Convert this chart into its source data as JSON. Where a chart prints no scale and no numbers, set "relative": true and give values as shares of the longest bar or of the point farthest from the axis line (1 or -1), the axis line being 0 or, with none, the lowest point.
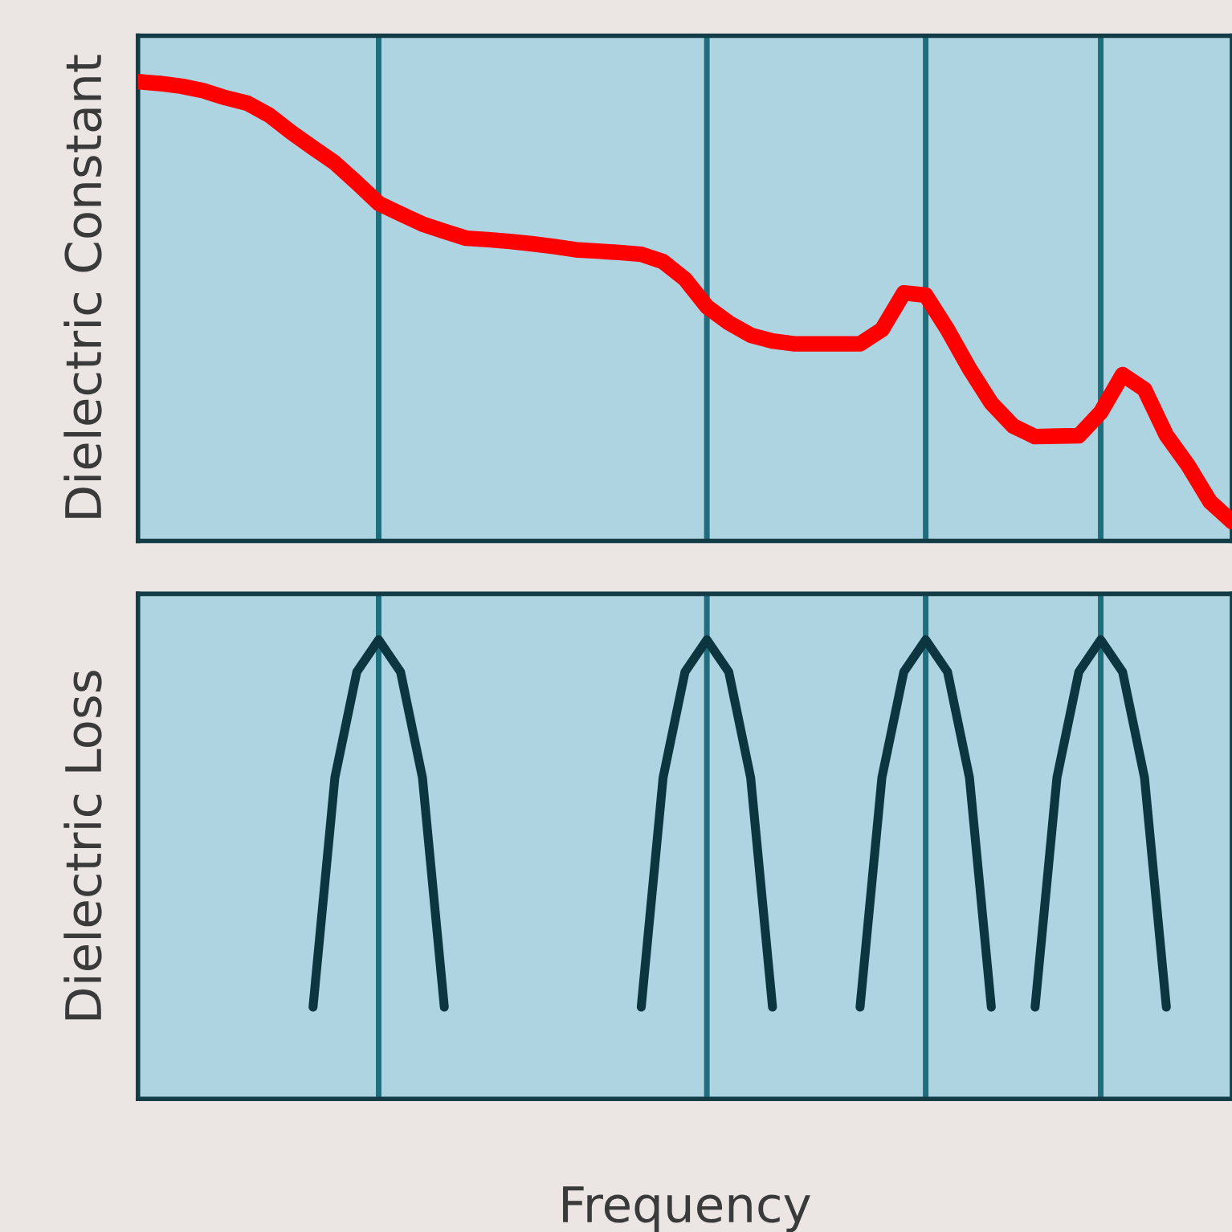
{
  "chart_data": [
    {
      "type": "line",
      "relative": true,
      "ylabel": "Dielectric Constant",
      "categories": [
        null,
        null,
        null,
        null,
        null,
        null,
        null,
        null,
        null,
        null,
        null,
        null,
        null,
        null,
        null,
        null,
        null,
        null,
        null,
        null,
        null,
        null,
        null,
        null,
        null,
        null,
        null,
        null,
        null,
        null,
        null,
        null,
        null,
        null,
        null,
        null,
        null,
        null,
        null,
        null,
        null,
        null,
        null,
        null,
        null,
        null,
        null,
        null,
        null,
        null,
        null
      ],
      "series": [
        {
          "color": "#ff0000",
          "values": [
            1.0,
            0.996,
            0.99,
            0.98,
            0.965,
            0.953,
            0.927,
            0.89,
            0.856,
            0.823,
            0.78,
            0.735,
            0.712,
            0.69,
            0.674,
            0.659,
            0.656,
            0.652,
            0.647,
            0.641,
            0.634,
            0.631,
            0.628,
            0.624,
            0.608,
            0.57,
            0.51,
            0.475,
            0.448,
            0.435,
            0.429,
            0.429,
            0.429,
            0.429,
            0.46,
            0.54,
            0.535,
            0.46,
            0.375,
            0.3,
            0.25,
            0.227,
            0.228,
            0.229,
            0.28,
            0.362,
            0.33,
            0.23,
            0.164,
            0.085,
            0.042
          ]
        }
      ],
      "grid": "x"
    },
    {
      "type": "line",
      "relative": true,
      "ylabel": "Dielectric Loss",
      "xlabel": "Frequency",
      "categories": [
        null,
        null,
        null,
        null,
        null,
        null,
        null,
        null,
        null,
        null,
        null,
        null,
        null,
        null,
        null,
        null,
        null,
        null,
        null,
        null,
        null,
        null,
        null,
        null,
        null,
        null,
        null,
        null,
        null,
        null,
        null,
        null,
        null,
        null,
        null,
        null,
        null,
        null,
        null,
        null,
        null,
        null,
        null,
        null,
        null,
        null,
        null,
        null,
        null,
        null,
        null
      ],
      "series": [
        {
          "color": "#0d3540",
          "values": [
            null,
            null,
            null,
            null,
            null,
            null,
            null,
            null,
            0.2,
            0.7,
            0.93,
            1,
            0.93,
            0.7,
            0.2,
            null,
            null,
            null,
            null,
            null,
            null,
            null,
            null,
            0.2,
            0.7,
            0.93,
            1,
            0.93,
            0.7,
            0.2,
            null,
            null,
            null,
            0.2,
            0.7,
            0.93,
            1,
            0.93,
            0.7,
            0.2,
            null,
            0.2,
            0.7,
            0.93,
            1,
            0.93,
            0.7,
            0.2,
            null,
            null,
            null
          ]
        }
      ],
      "grid": "x"
    }
  ]
}
